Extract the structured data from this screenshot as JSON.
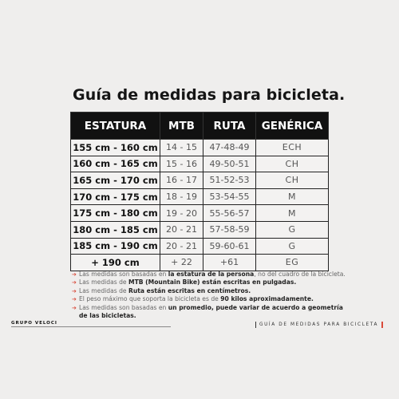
{
  "title": "Guía de medidas para bicicleta.",
  "table": {
    "headers": [
      "ESTATURA",
      "MTB",
      "RUTA",
      "GENÉRICA"
    ],
    "rows": [
      [
        "155 cm - 160 cm",
        "14 - 15",
        "47-48-49",
        "ECH"
      ],
      [
        "160 cm - 165 cm",
        "15 - 16",
        "49-50-51",
        "CH"
      ],
      [
        "165 cm - 170 cm",
        "16 - 17",
        "51-52-53",
        "CH"
      ],
      [
        "170 cm - 175 cm",
        "18 - 19",
        "53-54-55",
        "M"
      ],
      [
        "175 cm - 180 cm",
        "19 - 20",
        "55-56-57",
        "M"
      ],
      [
        "180 cm - 185 cm",
        "20 - 21",
        "57-58-59",
        "G"
      ],
      [
        "185 cm - 190 cm",
        "20 - 21",
        "59-60-61",
        "G"
      ],
      [
        "+ 190 cm",
        "+ 22",
        "+61",
        "EG"
      ]
    ]
  },
  "notes": {
    "n1_a": "Las medidas son basadas en ",
    "n1_b": "la estatura de la persona",
    "n1_c": ", no del cuadro de la bicicleta.",
    "n2_a": "Las medidas de ",
    "n2_b": "MTB (Mountain Bike) están escritas en pulgadas.",
    "n3_a": "Las medidas de ",
    "n3_b": "Ruta están escritas en centímetros.",
    "n4_a": "El peso máximo que soporta la bicicleta es de ",
    "n4_b": "90 kilos aproximadamente.",
    "n5_a": "Las medidas son basadas en ",
    "n5_b": "un promedio, puede variar de acuerdo a geometría",
    "n5_c": "de las bicicletas."
  },
  "brand": "GRUPO VELOCI",
  "footer": "GUÍA DE MEDIDAS PARA BICICLETA",
  "colors": {
    "accent": "#d94a3a",
    "header_bg": "#111111",
    "background": "#efeeed"
  }
}
